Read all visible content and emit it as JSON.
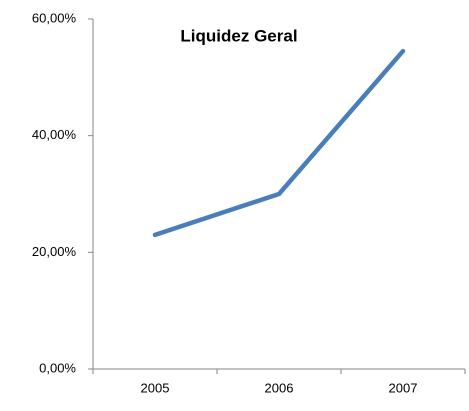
{
  "chart_data": {
    "type": "line",
    "title": "Liquidez Geral",
    "categories": [
      "2005",
      "2006",
      "2007"
    ],
    "series": [
      {
        "name": "Liquidez Geral",
        "color": "#4a7ebb",
        "values": [
          23,
          30,
          54.5
        ]
      }
    ],
    "ylim": [
      0,
      60
    ],
    "yticks": [
      {
        "value": 0,
        "label": "0,00%"
      },
      {
        "value": 20,
        "label": "20,00%"
      },
      {
        "value": 40,
        "label": "40,00%"
      },
      {
        "value": 60,
        "label": "60,00%"
      }
    ],
    "grid": false,
    "legend": false
  }
}
